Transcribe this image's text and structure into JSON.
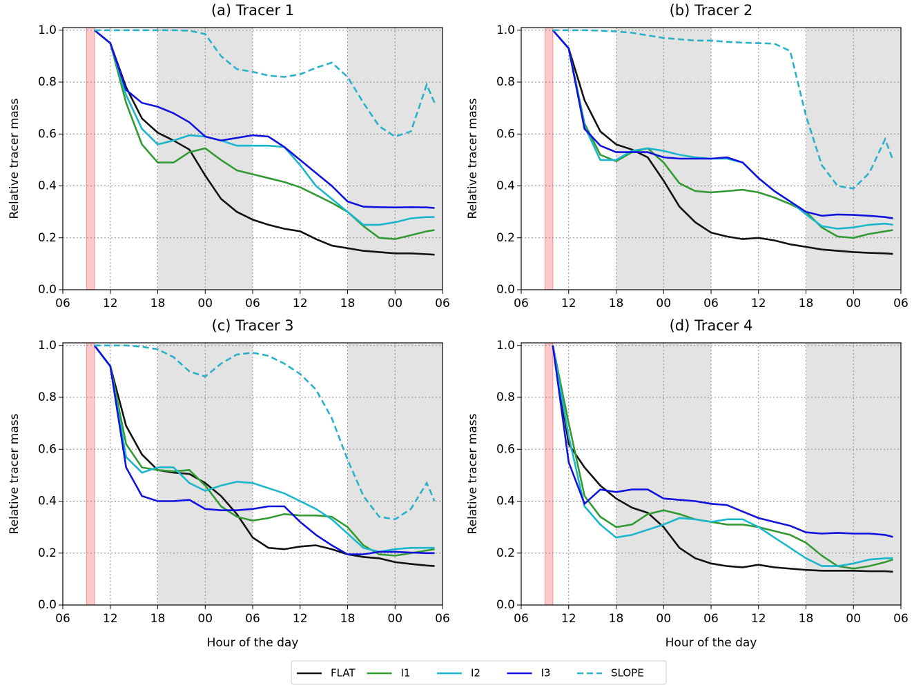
{
  "chart_data": [
    {
      "type": "line",
      "title": "(a) Tracer 1",
      "ylabel": "Relative tracer mass",
      "x": [
        10,
        12,
        14,
        16,
        18,
        20,
        22,
        24,
        26,
        28,
        30,
        32,
        34,
        36,
        38,
        40,
        42,
        44,
        46,
        48,
        50,
        52,
        53
      ],
      "xlim": [
        6,
        54
      ],
      "xticks": [
        {
          "value": 6,
          "label": "06"
        },
        12,
        18,
        {
          "value": 24,
          "label": "00"
        },
        {
          "value": 30,
          "label": "06"
        },
        {
          "value": 36,
          "label": "12"
        },
        {
          "value": 42,
          "label": "18"
        },
        {
          "value": 48,
          "label": "00"
        },
        {
          "value": 54,
          "label": "06"
        }
      ],
      "ylim": [
        0,
        1.01
      ],
      "yticks": [
        {
          "value": 0,
          "label": "0.0"
        },
        0.2,
        0.4,
        0.6,
        0.8,
        {
          "value": 1,
          "label": "1.0"
        }
      ],
      "grid": true,
      "shaded_spans": [
        [
          18,
          30
        ],
        [
          42,
          54
        ]
      ],
      "highlight_span": [
        9,
        10
      ],
      "series": [
        {
          "name": "FLAT",
          "color": "#111111",
          "dashed": false,
          "values": [
            1.0,
            0.95,
            0.78,
            0.66,
            0.605,
            0.575,
            0.54,
            0.44,
            0.35,
            0.3,
            0.27,
            0.25,
            0.235,
            0.225,
            0.195,
            0.17,
            0.16,
            0.15,
            0.145,
            0.14,
            0.14,
            0.137,
            0.135
          ]
        },
        {
          "name": "I1",
          "color": "#339933",
          "dashed": false,
          "values": [
            1.0,
            0.95,
            0.72,
            0.56,
            0.49,
            0.49,
            0.53,
            0.545,
            0.5,
            0.46,
            0.445,
            0.43,
            0.415,
            0.395,
            0.365,
            0.335,
            0.3,
            0.245,
            0.2,
            0.195,
            0.21,
            0.225,
            0.23
          ]
        },
        {
          "name": "I2",
          "color": "#1bb6cc",
          "dashed": false,
          "values": [
            1.0,
            0.95,
            0.75,
            0.62,
            0.56,
            0.575,
            0.595,
            0.59,
            0.575,
            0.555,
            0.555,
            0.555,
            0.55,
            0.48,
            0.4,
            0.35,
            0.3,
            0.25,
            0.25,
            0.26,
            0.275,
            0.28,
            0.28
          ]
        },
        {
          "name": "I3",
          "color": "#1212dd",
          "dashed": false,
          "values": [
            1.0,
            0.95,
            0.77,
            0.72,
            0.705,
            0.68,
            0.645,
            0.59,
            0.575,
            0.585,
            0.595,
            0.59,
            0.55,
            0.5,
            0.45,
            0.4,
            0.34,
            0.32,
            0.318,
            0.317,
            0.318,
            0.317,
            0.315
          ]
        },
        {
          "name": "SLOPE",
          "color": "#2ab0c8",
          "dashed": true,
          "values": [
            1.0,
            1.0,
            1.0,
            1.0,
            1.0,
            1.0,
            0.998,
            0.985,
            0.9,
            0.85,
            0.84,
            0.825,
            0.82,
            0.83,
            0.855,
            0.875,
            0.82,
            0.72,
            0.63,
            0.59,
            0.61,
            0.79,
            0.72
          ]
        }
      ]
    },
    {
      "type": "line",
      "title": "(b) Tracer 2",
      "ylabel": "Relative tracer mass",
      "x": [
        10,
        12,
        14,
        16,
        18,
        20,
        22,
        24,
        26,
        28,
        30,
        32,
        34,
        36,
        38,
        40,
        42,
        44,
        46,
        48,
        50,
        52,
        53
      ],
      "xlim": [
        6,
        54
      ],
      "xticks": [
        {
          "value": 6,
          "label": "06"
        },
        12,
        18,
        {
          "value": 24,
          "label": "00"
        },
        {
          "value": 30,
          "label": "06"
        },
        {
          "value": 36,
          "label": "12"
        },
        {
          "value": 42,
          "label": "18"
        },
        {
          "value": 48,
          "label": "00"
        },
        {
          "value": 54,
          "label": "06"
        }
      ],
      "ylim": [
        0,
        1.01
      ],
      "yticks": [
        {
          "value": 0,
          "label": "0.0"
        },
        0.2,
        0.4,
        0.6,
        0.8,
        {
          "value": 1,
          "label": "1.0"
        }
      ],
      "grid": true,
      "shaded_spans": [
        [
          18,
          30
        ],
        [
          42,
          54
        ]
      ],
      "highlight_span": [
        9,
        10
      ],
      "series": [
        {
          "name": "FLAT",
          "color": "#111111",
          "dashed": false,
          "values": [
            1.0,
            0.93,
            0.73,
            0.61,
            0.56,
            0.54,
            0.51,
            0.42,
            0.32,
            0.26,
            0.22,
            0.205,
            0.195,
            0.2,
            0.19,
            0.175,
            0.165,
            0.155,
            0.15,
            0.145,
            0.142,
            0.14,
            0.138
          ]
        },
        {
          "name": "I1",
          "color": "#339933",
          "dashed": false,
          "values": [
            1.0,
            0.93,
            0.64,
            0.52,
            0.495,
            0.53,
            0.545,
            0.49,
            0.41,
            0.38,
            0.375,
            0.38,
            0.385,
            0.375,
            0.355,
            0.33,
            0.3,
            0.24,
            0.205,
            0.2,
            0.215,
            0.225,
            0.23
          ]
        },
        {
          "name": "I2",
          "color": "#1bb6cc",
          "dashed": false,
          "values": [
            1.0,
            0.93,
            0.63,
            0.5,
            0.5,
            0.535,
            0.545,
            0.535,
            0.52,
            0.51,
            0.505,
            0.505,
            0.49,
            0.43,
            0.38,
            0.34,
            0.29,
            0.245,
            0.235,
            0.24,
            0.25,
            0.255,
            0.25
          ]
        },
        {
          "name": "I3",
          "color": "#1212dd",
          "dashed": false,
          "values": [
            1.0,
            0.93,
            0.62,
            0.555,
            0.53,
            0.53,
            0.53,
            0.51,
            0.505,
            0.505,
            0.505,
            0.51,
            0.49,
            0.43,
            0.38,
            0.34,
            0.3,
            0.285,
            0.29,
            0.288,
            0.285,
            0.28,
            0.275
          ]
        },
        {
          "name": "SLOPE",
          "color": "#2ab0c8",
          "dashed": true,
          "values": [
            1.0,
            1.0,
            1.0,
            0.998,
            0.995,
            0.99,
            0.98,
            0.97,
            0.965,
            0.96,
            0.96,
            0.955,
            0.952,
            0.95,
            0.948,
            0.92,
            0.67,
            0.48,
            0.4,
            0.39,
            0.45,
            0.58,
            0.5
          ]
        }
      ]
    },
    {
      "type": "line",
      "title": "(c) Tracer 3",
      "ylabel": "Relative tracer mass",
      "xlabel": "Hour of the day",
      "x": [
        10,
        12,
        14,
        16,
        18,
        20,
        22,
        24,
        26,
        28,
        30,
        32,
        34,
        36,
        38,
        40,
        42,
        44,
        46,
        48,
        50,
        52,
        53
      ],
      "xlim": [
        6,
        54
      ],
      "xticks": [
        {
          "value": 6,
          "label": "06"
        },
        12,
        18,
        {
          "value": 24,
          "label": "00"
        },
        {
          "value": 30,
          "label": "06"
        },
        {
          "value": 36,
          "label": "12"
        },
        {
          "value": 42,
          "label": "18"
        },
        {
          "value": 48,
          "label": "00"
        },
        {
          "value": 54,
          "label": "06"
        }
      ],
      "ylim": [
        0,
        1.01
      ],
      "yticks": [
        {
          "value": 0,
          "label": "0.0"
        },
        0.2,
        0.4,
        0.6,
        0.8,
        {
          "value": 1,
          "label": "1.0"
        }
      ],
      "grid": true,
      "shaded_spans": [
        [
          18,
          30
        ],
        [
          42,
          54
        ]
      ],
      "highlight_span": [
        9,
        10
      ],
      "series": [
        {
          "name": "FLAT",
          "color": "#111111",
          "dashed": false,
          "values": [
            1.0,
            0.92,
            0.69,
            0.58,
            0.52,
            0.51,
            0.505,
            0.47,
            0.42,
            0.35,
            0.26,
            0.22,
            0.215,
            0.225,
            0.23,
            0.215,
            0.195,
            0.185,
            0.18,
            0.165,
            0.158,
            0.152,
            0.15
          ]
        },
        {
          "name": "I1",
          "color": "#339933",
          "dashed": false,
          "values": [
            1.0,
            0.92,
            0.62,
            0.53,
            0.52,
            0.515,
            0.52,
            0.46,
            0.38,
            0.34,
            0.325,
            0.335,
            0.35,
            0.345,
            0.345,
            0.34,
            0.3,
            0.23,
            0.195,
            0.19,
            0.2,
            0.21,
            0.215
          ]
        },
        {
          "name": "I2",
          "color": "#1bb6cc",
          "dashed": false,
          "values": [
            1.0,
            0.92,
            0.57,
            0.51,
            0.53,
            0.53,
            0.47,
            0.44,
            0.46,
            0.475,
            0.47,
            0.45,
            0.43,
            0.4,
            0.37,
            0.33,
            0.275,
            0.22,
            0.205,
            0.215,
            0.22,
            0.22,
            0.22
          ]
        },
        {
          "name": "I3",
          "color": "#1212dd",
          "dashed": false,
          "values": [
            1.0,
            0.92,
            0.53,
            0.42,
            0.4,
            0.4,
            0.405,
            0.37,
            0.365,
            0.365,
            0.37,
            0.38,
            0.38,
            0.32,
            0.27,
            0.23,
            0.195,
            0.195,
            0.205,
            0.205,
            0.202,
            0.2,
            0.2
          ]
        },
        {
          "name": "SLOPE",
          "color": "#2ab0c8",
          "dashed": true,
          "values": [
            1.0,
            1.0,
            1.0,
            0.995,
            0.985,
            0.955,
            0.9,
            0.88,
            0.93,
            0.965,
            0.972,
            0.96,
            0.93,
            0.89,
            0.83,
            0.72,
            0.56,
            0.42,
            0.34,
            0.33,
            0.37,
            0.47,
            0.4
          ]
        }
      ]
    },
    {
      "type": "line",
      "title": "(d) Tracer 4",
      "ylabel": "Relative tracer mass",
      "xlabel": "Hour of the day",
      "x": [
        10,
        12,
        14,
        16,
        18,
        20,
        22,
        24,
        26,
        28,
        30,
        32,
        34,
        36,
        38,
        40,
        42,
        44,
        46,
        48,
        50,
        52,
        53
      ],
      "xlim": [
        6,
        54
      ],
      "xticks": [
        {
          "value": 6,
          "label": "06"
        },
        12,
        18,
        {
          "value": 24,
          "label": "00"
        },
        {
          "value": 30,
          "label": "06"
        },
        {
          "value": 36,
          "label": "12"
        },
        {
          "value": 42,
          "label": "18"
        },
        {
          "value": 48,
          "label": "00"
        },
        {
          "value": 54,
          "label": "06"
        }
      ],
      "ylim": [
        0,
        1.01
      ],
      "yticks": [
        {
          "value": 0,
          "label": "0.0"
        },
        0.2,
        0.4,
        0.6,
        0.8,
        {
          "value": 1,
          "label": "1.0"
        }
      ],
      "grid": true,
      "shaded_spans": [
        [
          18,
          30
        ],
        [
          42,
          54
        ]
      ],
      "highlight_span": [
        9,
        10
      ],
      "series": [
        {
          "name": "FLAT",
          "color": "#111111",
          "dashed": false,
          "values": [
            1.0,
            0.62,
            0.53,
            0.46,
            0.41,
            0.375,
            0.355,
            0.3,
            0.22,
            0.18,
            0.16,
            0.15,
            0.145,
            0.155,
            0.145,
            0.14,
            0.135,
            0.132,
            0.132,
            0.132,
            0.13,
            0.13,
            0.128
          ]
        },
        {
          "name": "I1",
          "color": "#339933",
          "dashed": false,
          "values": [
            1.0,
            0.7,
            0.42,
            0.34,
            0.3,
            0.31,
            0.35,
            0.365,
            0.35,
            0.33,
            0.32,
            0.31,
            0.31,
            0.3,
            0.285,
            0.27,
            0.24,
            0.19,
            0.15,
            0.14,
            0.15,
            0.165,
            0.175
          ]
        },
        {
          "name": "I2",
          "color": "#1bb6cc",
          "dashed": false,
          "values": [
            1.0,
            0.65,
            0.38,
            0.31,
            0.26,
            0.27,
            0.29,
            0.31,
            0.335,
            0.33,
            0.32,
            0.33,
            0.33,
            0.3,
            0.26,
            0.22,
            0.18,
            0.15,
            0.15,
            0.16,
            0.175,
            0.18,
            0.18
          ]
        },
        {
          "name": "I3",
          "color": "#1212dd",
          "dashed": false,
          "values": [
            1.0,
            0.55,
            0.39,
            0.445,
            0.435,
            0.445,
            0.445,
            0.41,
            0.405,
            0.4,
            0.39,
            0.385,
            0.36,
            0.335,
            0.32,
            0.305,
            0.28,
            0.275,
            0.278,
            0.275,
            0.275,
            0.27,
            0.262
          ]
        }
      ]
    }
  ]
}
